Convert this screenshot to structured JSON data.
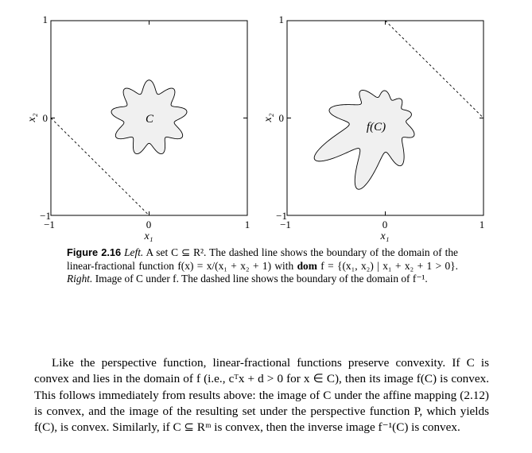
{
  "figure": {
    "left_panel": {
      "set_label": "C",
      "tick_labels_x": [
        "−1",
        "0",
        "1"
      ],
      "tick_labels_y": [
        "1",
        "0",
        "−1"
      ],
      "xlabel": "x₁",
      "ylabel": "x₂"
    },
    "right_panel": {
      "set_label": "f(C)",
      "tick_labels_x": [
        "−1",
        "0",
        "1"
      ],
      "tick_labels_y": [
        "1",
        "0",
        "−1"
      ],
      "xlabel": "x₁",
      "ylabel": "x₂"
    },
    "colors": {
      "set_fill": "#f0f0f0",
      "stroke": "#000000"
    }
  },
  "caption": {
    "label": "Figure 2.16",
    "left_word": "Left.",
    "text1": "A set C ⊆ R². The dashed line shows the boundary of the domain of the linear-fractional function f(x) = x/(x₁ + x₂ + 1) with",
    "dom_word": "dom",
    "text2": "f = {(x₁, x₂) | x₁ + x₂ + 1 > 0}.",
    "right_word": "Right.",
    "text3": "Image of C under f. The dashed line shows the boundary of the domain of f⁻¹."
  },
  "paragraph": {
    "text": "Like the perspective function, linear-fractional functions preserve convexity. If C is convex and lies in the domain of f (i.e., cᵀx + d > 0 for x ∈ C), then its image f(C) is convex. This follows immediately from results above: the image of C under the affine mapping (2.12) is convex, and the image of the resulting set under the perspective function P, which yields f(C), is convex. Similarly, if C ⊆ Rᵐ is convex, then the inverse image f⁻¹(C) is convex."
  }
}
